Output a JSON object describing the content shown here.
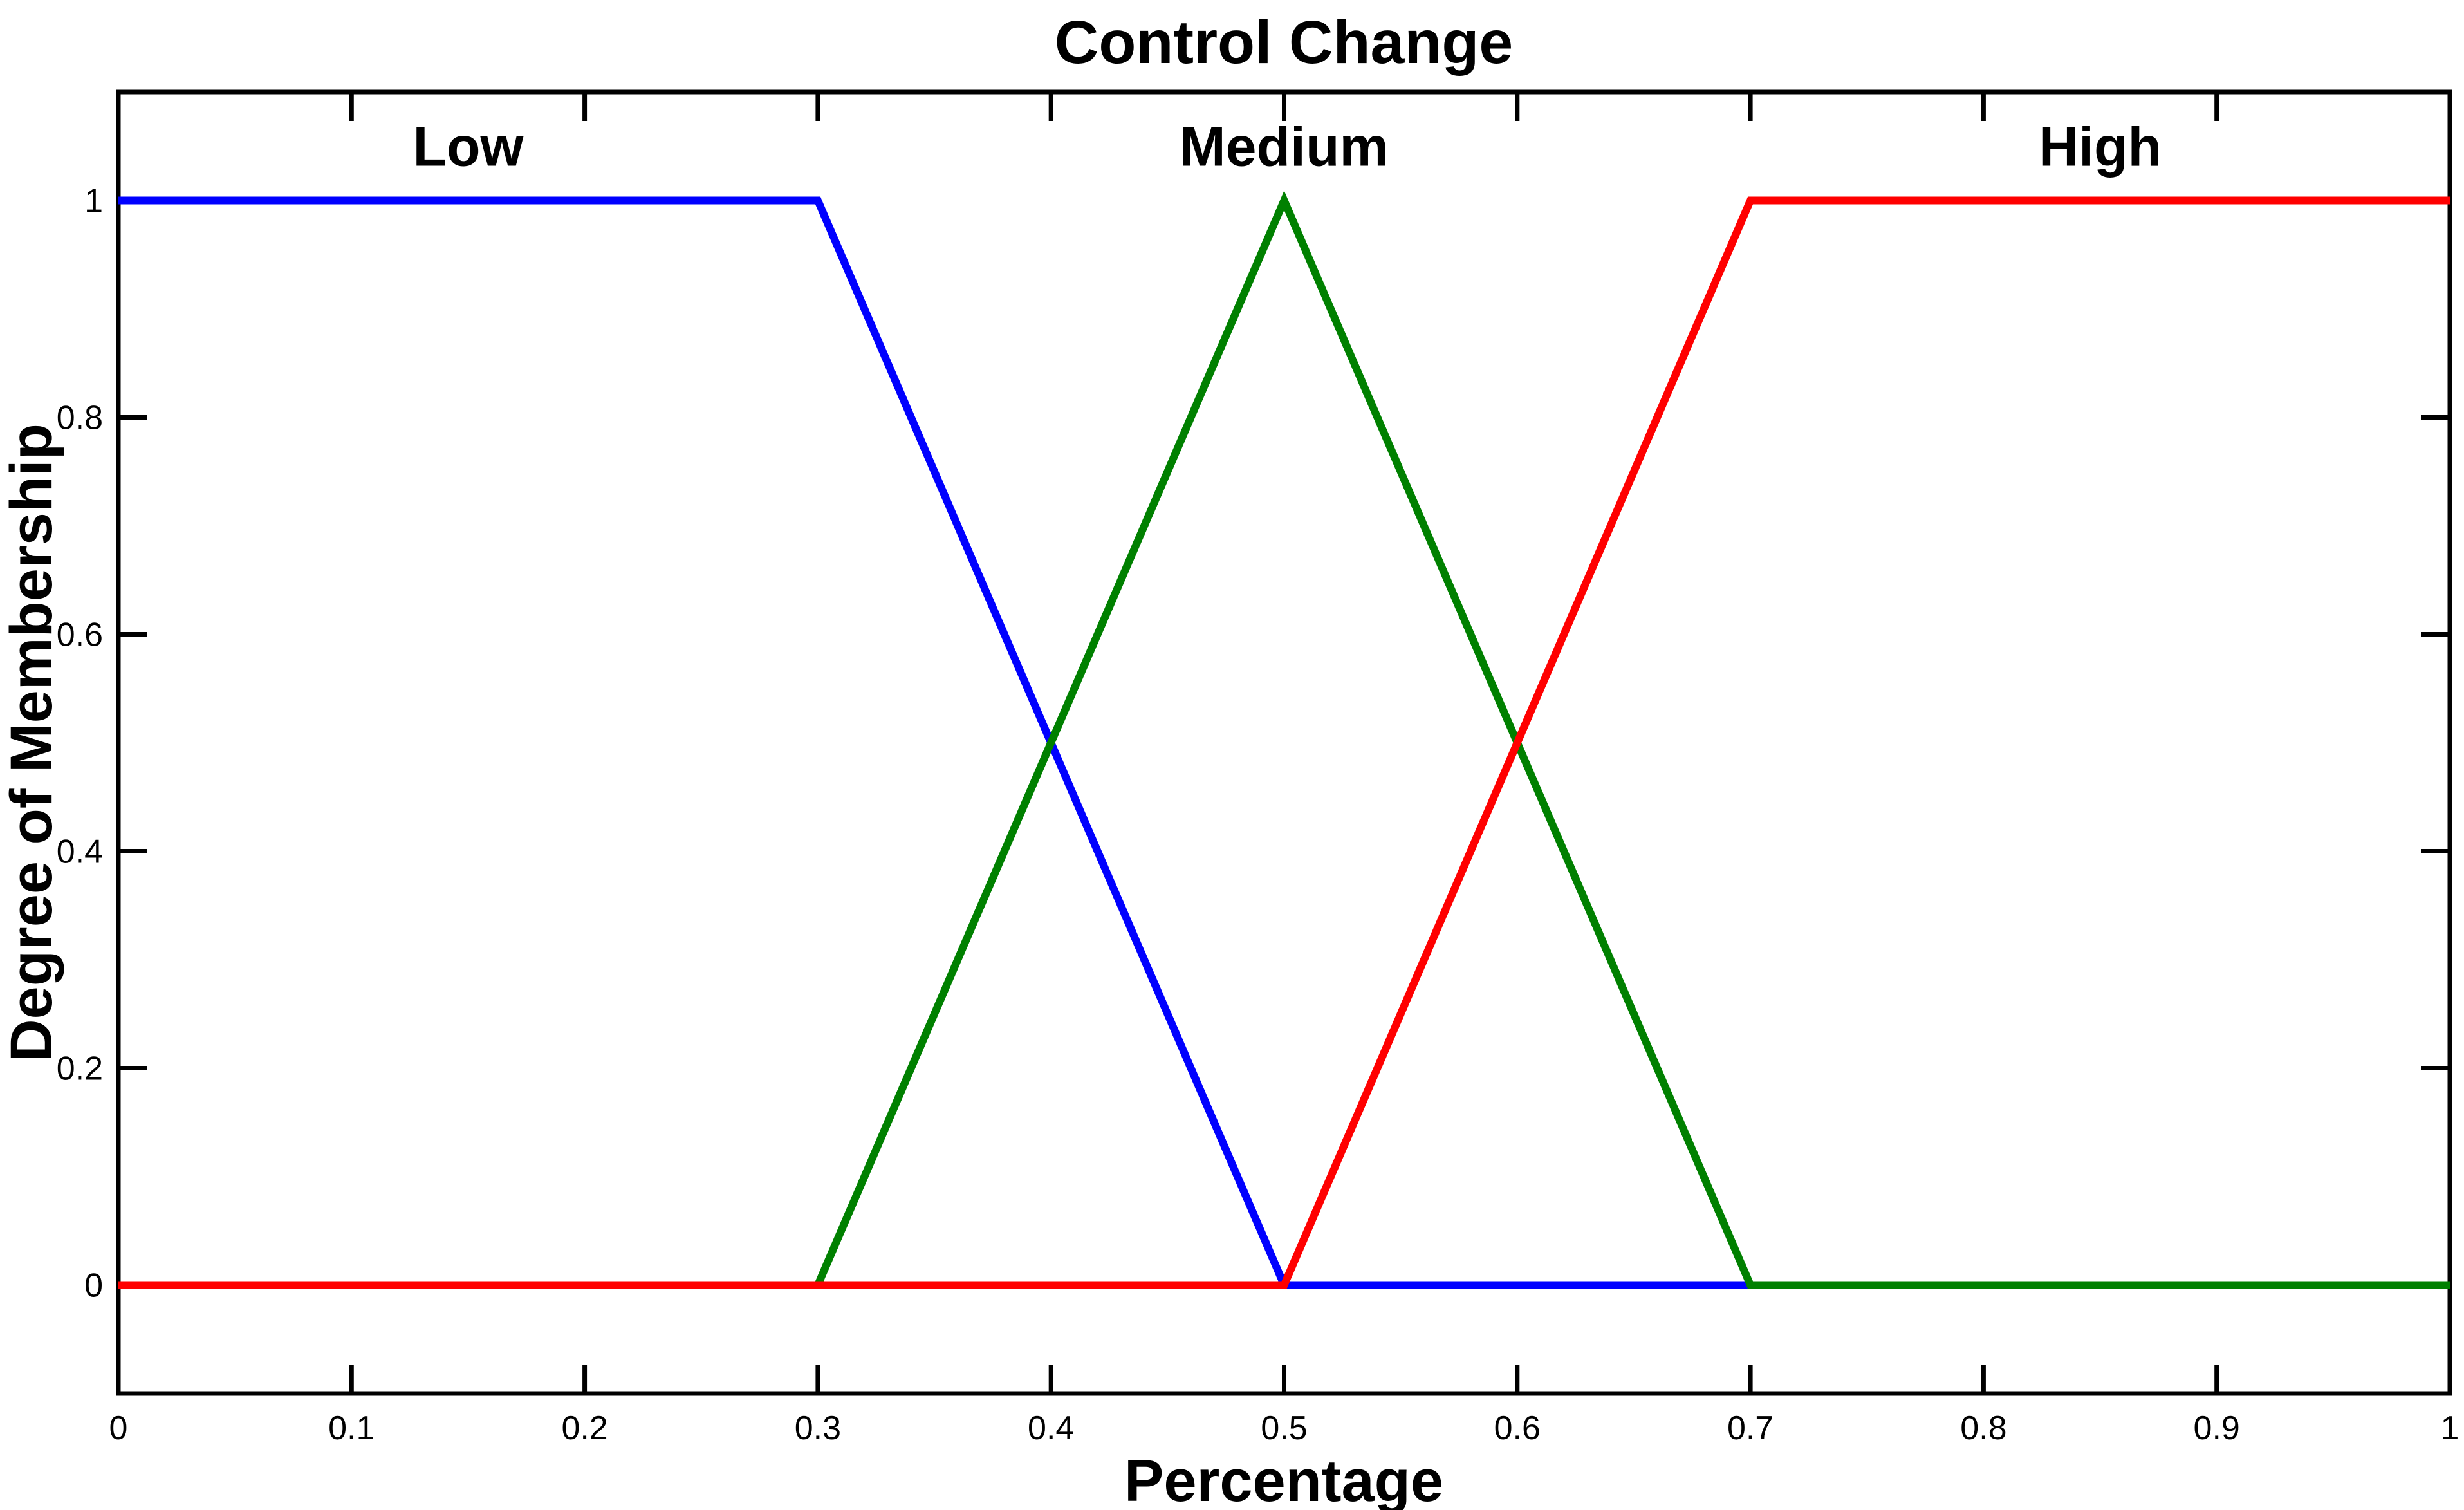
{
  "chart_data": {
    "type": "line",
    "title": "Control Change",
    "xlabel": "Percentage",
    "ylabel": "Degree of Membership",
    "xlim": [
      0,
      1
    ],
    "ylim": [
      -0.1,
      1.1
    ],
    "grid": false,
    "box": true,
    "background": "#FFFFFF",
    "axis_color": "#000000",
    "x_ticks": {
      "values": [
        0,
        0.1,
        0.2,
        0.3,
        0.4,
        0.5,
        0.6,
        0.7,
        0.8,
        0.9,
        1
      ],
      "labels": [
        "0",
        "0.1",
        "0.2",
        "0.3",
        "0.4",
        "0.5",
        "0.6",
        "0.7",
        "0.8",
        "0.9",
        "1"
      ]
    },
    "y_ticks": {
      "values": [
        0,
        0.2,
        0.4,
        0.6,
        0.8,
        1
      ],
      "labels": [
        "0",
        "0.2",
        "0.4",
        "0.6",
        "0.8",
        "1"
      ]
    },
    "set_labels": [
      {
        "text": "Low",
        "x": 0.15,
        "y": 1.05
      },
      {
        "text": "Medium",
        "x": 0.5,
        "y": 1.05
      },
      {
        "text": "High",
        "x": 0.85,
        "y": 1.05
      }
    ],
    "series": [
      {
        "name": "Low",
        "color": "#0000FF",
        "points": [
          [
            0,
            1
          ],
          [
            0.3,
            1
          ],
          [
            0.5,
            0
          ],
          [
            1,
            0
          ]
        ]
      },
      {
        "name": "Medium",
        "color": "#008000",
        "points": [
          [
            0,
            0
          ],
          [
            0.3,
            0
          ],
          [
            0.5,
            1
          ],
          [
            0.7,
            0
          ],
          [
            1,
            0
          ]
        ]
      },
      {
        "name": "High",
        "color": "#FF0000",
        "points": [
          [
            0,
            0
          ],
          [
            0.5,
            0
          ],
          [
            0.7,
            1
          ],
          [
            1,
            1
          ]
        ]
      }
    ]
  }
}
